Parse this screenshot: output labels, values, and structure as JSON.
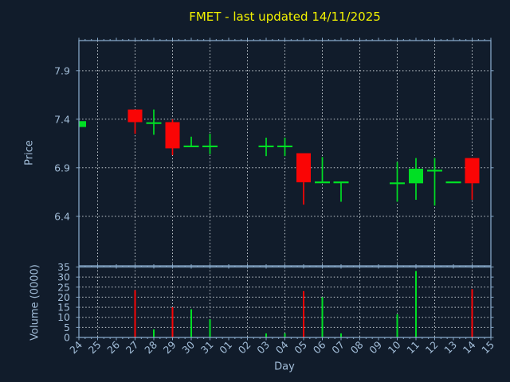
{
  "title": "FMET - last updated 14/11/2025",
  "xlabel": "Day",
  "colors": {
    "background": "#111c2b",
    "axis_border": "#85a6c6",
    "tick_text": "#a2bdd8",
    "grid": "#c2c9cf",
    "title_text": "#f2f200",
    "bullish_green": "#00df24",
    "bearish_red": "#fa0505"
  },
  "chart_data": [
    {
      "type": "candlestick",
      "panel": "price",
      "title": "FMET - last updated 14/11/2025",
      "ylabel": "Price",
      "xlabel": "Day",
      "x_tick_labels": [
        "24",
        "25",
        "26",
        "27",
        "28",
        "29",
        "30",
        "31",
        "01",
        "02",
        "03",
        "04",
        "05",
        "06",
        "07",
        "08",
        "09",
        "10",
        "11",
        "12",
        "13",
        "14",
        "15"
      ],
      "yticks": [
        6.4,
        6.9,
        7.4,
        7.9
      ],
      "ylim": [
        5.89,
        8.21
      ],
      "grid": "dotted gray; horizontal at yticks, vertical every 2nd day starting at 25",
      "legend": "none",
      "candles": [
        {
          "day": "24",
          "open": 7.32,
          "high": 7.38,
          "low": 7.32,
          "close": 7.38
        },
        {
          "day": "27",
          "open": 7.5,
          "high": 7.5,
          "low": 7.25,
          "close": 7.37
        },
        {
          "day": "28",
          "open": 7.36,
          "high": 7.5,
          "low": 7.24,
          "close": 7.36
        },
        {
          "day": "29",
          "open": 7.37,
          "high": 7.4,
          "low": 7.03,
          "close": 7.1
        },
        {
          "day": "30",
          "open": 7.12,
          "high": 7.22,
          "low": 7.12,
          "close": 7.12
        },
        {
          "day": "31",
          "open": 7.12,
          "high": 7.25,
          "low": 7.04,
          "close": 7.12
        },
        {
          "day": "03",
          "open": 7.12,
          "high": 7.21,
          "low": 7.02,
          "close": 7.12
        },
        {
          "day": "04",
          "open": 7.12,
          "high": 7.21,
          "low": 7.02,
          "close": 7.12
        },
        {
          "day": "05",
          "open": 7.05,
          "high": 7.05,
          "low": 6.52,
          "close": 6.75
        },
        {
          "day": "06",
          "open": 6.75,
          "high": 7.01,
          "low": 6.75,
          "close": 6.75
        },
        {
          "day": "07",
          "open": 6.75,
          "high": 6.75,
          "low": 6.55,
          "close": 6.75
        },
        {
          "day": "10",
          "open": 6.74,
          "high": 6.96,
          "low": 6.55,
          "close": 6.74
        },
        {
          "day": "11",
          "open": 6.74,
          "high": 7.0,
          "low": 6.57,
          "close": 6.89
        },
        {
          "day": "12",
          "open": 6.87,
          "high": 7.0,
          "low": 6.51,
          "close": 6.87
        },
        {
          "day": "13",
          "open": 6.75,
          "high": 6.75,
          "low": 6.75,
          "close": 6.75
        },
        {
          "day": "14",
          "open": 7.0,
          "high": 7.0,
          "low": 6.57,
          "close": 6.74
        }
      ]
    },
    {
      "type": "bar",
      "panel": "volume",
      "ylabel": "Volume (0000)",
      "yticks": [
        0,
        5,
        10,
        15,
        20,
        25,
        30,
        35
      ],
      "ylim": [
        0,
        35
      ],
      "bars": [
        {
          "day": "27",
          "value": 23.5,
          "color": "red"
        },
        {
          "day": "28",
          "value": 4,
          "color": "green"
        },
        {
          "day": "29",
          "value": 15,
          "color": "red"
        },
        {
          "day": "30",
          "value": 14,
          "color": "green"
        },
        {
          "day": "31",
          "value": 9,
          "color": "green"
        },
        {
          "day": "03",
          "value": 2,
          "color": "green"
        },
        {
          "day": "04",
          "value": 2,
          "color": "green"
        },
        {
          "day": "05",
          "value": 23,
          "color": "red"
        },
        {
          "day": "06",
          "value": 20,
          "color": "green"
        },
        {
          "day": "07",
          "value": 2,
          "color": "green"
        },
        {
          "day": "10",
          "value": 11.5,
          "color": "green"
        },
        {
          "day": "11",
          "value": 33,
          "color": "green"
        },
        {
          "day": "14",
          "value": 24,
          "color": "red"
        }
      ]
    }
  ]
}
